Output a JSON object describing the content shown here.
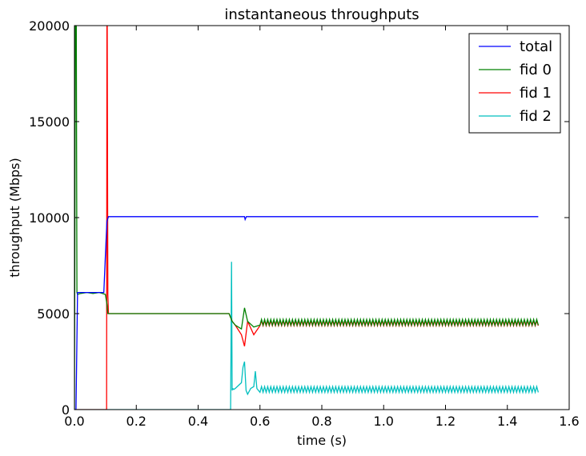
{
  "chart_data": {
    "type": "line",
    "title": "instantaneous throughputs",
    "xlabel": "time (s)",
    "ylabel": "throughput (Mbps)",
    "xlim": [
      0,
      1.6
    ],
    "ylim": [
      0,
      20000
    ],
    "xticks": [
      0.0,
      0.2,
      0.4,
      0.6,
      0.8,
      1.0,
      1.2,
      1.4,
      1.6
    ],
    "xtick_labels": [
      "0.0",
      "0.2",
      "0.4",
      "0.6",
      "0.8",
      "1.0",
      "1.2",
      "1.4",
      "1.6"
    ],
    "yticks": [
      0,
      5000,
      10000,
      15000,
      20000
    ],
    "ytick_labels": [
      "0",
      "5000",
      "10000",
      "15000",
      "20000"
    ],
    "grid": false,
    "legend_position": "top-right",
    "series": [
      {
        "name": "total",
        "color": "#0000ff",
        "x": [
          0.0,
          0.005,
          0.01,
          0.02,
          0.04,
          0.06,
          0.08,
          0.095,
          0.1,
          0.105,
          0.11,
          0.2,
          0.4,
          0.5,
          0.55,
          0.552,
          0.556,
          0.56,
          0.6,
          0.8,
          1.0,
          1.2,
          1.4,
          1.5
        ],
        "y": [
          0,
          0,
          6100,
          6100,
          6100,
          6100,
          6100,
          6100,
          8000,
          9800,
          10050,
          10050,
          10050,
          10050,
          10050,
          9900,
          10050,
          10050,
          10050,
          10050,
          10050,
          10050,
          10050,
          10050
        ]
      },
      {
        "name": "fid 0",
        "color": "#008000",
        "x": [
          0.0,
          0.003,
          0.004,
          0.006,
          0.008,
          0.01,
          0.02,
          0.04,
          0.06,
          0.08,
          0.1,
          0.105,
          0.108,
          0.11,
          0.2,
          0.4,
          0.5,
          0.51,
          0.52,
          0.54,
          0.55,
          0.56,
          0.58,
          0.6,
          0.8,
          1.0,
          1.2,
          1.4,
          1.5
        ],
        "y": [
          0,
          20000,
          20000,
          20000,
          6100,
          6000,
          6050,
          6100,
          6050,
          6100,
          6000,
          5500,
          5000,
          5000,
          5000,
          5000,
          5000,
          4600,
          4400,
          4200,
          5300,
          4600,
          4300,
          4600,
          4550,
          4550,
          4550,
          4550,
          4550
        ]
      },
      {
        "name": "fid 1",
        "color": "#ff0000",
        "x": [
          0.0,
          0.1,
          0.104,
          0.105,
          0.106,
          0.108,
          0.11,
          0.2,
          0.4,
          0.5,
          0.51,
          0.52,
          0.54,
          0.55,
          0.56,
          0.58,
          0.6,
          0.8,
          1.0,
          1.2,
          1.4,
          1.5
        ],
        "y": [
          0,
          0,
          0,
          20000,
          20000,
          6000,
          5000,
          5000,
          5000,
          5000,
          4600,
          4400,
          3900,
          3300,
          4600,
          3900,
          4550,
          4500,
          4500,
          4500,
          4500,
          4500
        ]
      },
      {
        "name": "fid 2",
        "color": "#00bfbf",
        "x": [
          0.0,
          0.505,
          0.508,
          0.51,
          0.512,
          0.515,
          0.52,
          0.54,
          0.545,
          0.55,
          0.555,
          0.56,
          0.57,
          0.58,
          0.585,
          0.59,
          0.6,
          0.8,
          1.0,
          1.2,
          1.4,
          1.5
        ],
        "y": [
          0,
          0,
          7700,
          1000,
          1100,
          1050,
          1100,
          1400,
          2200,
          2500,
          1000,
          800,
          1100,
          1200,
          2000,
          1100,
          1050,
          1050,
          1050,
          1050,
          1050,
          1050
        ]
      }
    ],
    "oscillation_bands": [
      {
        "series": "fid 0",
        "from": 0.6,
        "to": 1.5,
        "center": 4550,
        "amp": 150
      },
      {
        "series": "fid 1",
        "from": 0.6,
        "to": 1.5,
        "center": 4500,
        "amp": 130
      },
      {
        "series": "fid 2",
        "from": 0.6,
        "to": 1.5,
        "center": 1050,
        "amp": 150
      }
    ]
  }
}
